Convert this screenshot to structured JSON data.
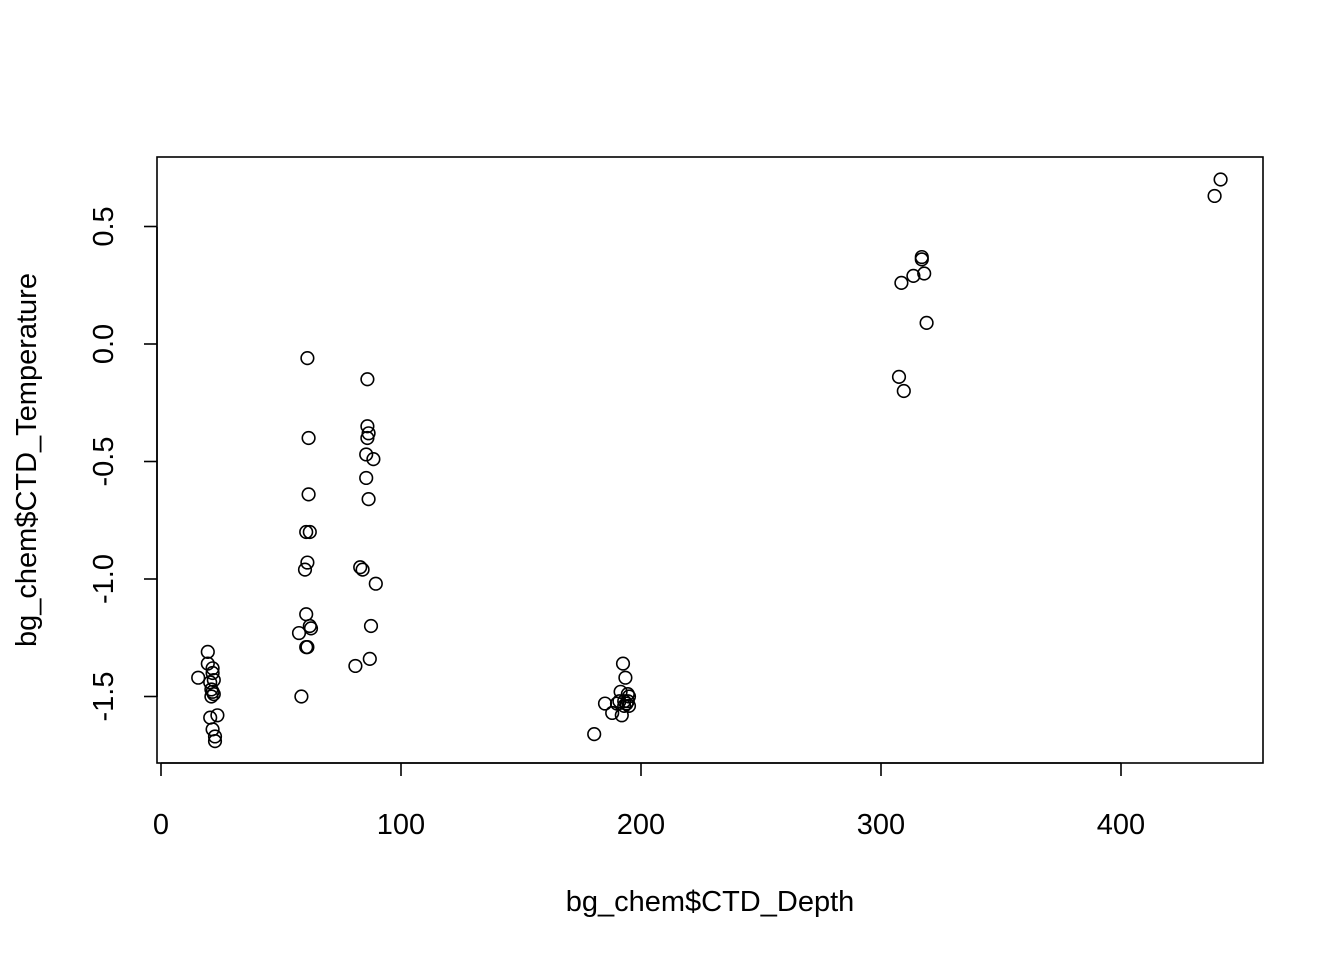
{
  "chart_data": {
    "type": "scatter",
    "title": "",
    "xlabel": "bg_chem$CTD_Depth",
    "ylabel": "bg_chem$CTD_Temperature",
    "xlim": [
      0,
      460
    ],
    "ylim": [
      -1.75,
      0.75
    ],
    "xticks": [
      "0",
      "100",
      "200",
      "300",
      "400"
    ],
    "yticks": [
      "-1.5",
      "-1.0",
      "-0.5",
      "0.0",
      "0.5"
    ],
    "grid": false,
    "legend": "none",
    "marker": "open-circle",
    "points": [
      {
        "x": 15.5,
        "y": -1.42
      },
      {
        "x": 19.5,
        "y": -1.31
      },
      {
        "x": 19.5,
        "y": -1.36
      },
      {
        "x": 20.5,
        "y": -1.44
      },
      {
        "x": 20.5,
        "y": -1.59
      },
      {
        "x": 21.0,
        "y": -1.47
      },
      {
        "x": 21.0,
        "y": -1.5
      },
      {
        "x": 21.5,
        "y": -1.38
      },
      {
        "x": 21.5,
        "y": -1.4
      },
      {
        "x": 21.5,
        "y": -1.48
      },
      {
        "x": 21.5,
        "y": -1.64
      },
      {
        "x": 22.0,
        "y": -1.43
      },
      {
        "x": 22.0,
        "y": -1.49
      },
      {
        "x": 22.5,
        "y": -1.67
      },
      {
        "x": 22.5,
        "y": -1.69
      },
      {
        "x": 23.5,
        "y": -1.58
      },
      {
        "x": 57.5,
        "y": -1.23
      },
      {
        "x": 58.5,
        "y": -1.5
      },
      {
        "x": 60.0,
        "y": -0.96
      },
      {
        "x": 60.5,
        "y": -0.8
      },
      {
        "x": 60.5,
        "y": -1.29
      },
      {
        "x": 60.5,
        "y": -1.15
      },
      {
        "x": 61.0,
        "y": -0.06
      },
      {
        "x": 61.0,
        "y": -0.93
      },
      {
        "x": 61.0,
        "y": -1.29
      },
      {
        "x": 61.5,
        "y": -0.4
      },
      {
        "x": 61.5,
        "y": -0.64
      },
      {
        "x": 62.0,
        "y": -0.8
      },
      {
        "x": 62.0,
        "y": -1.2
      },
      {
        "x": 62.5,
        "y": -1.21
      },
      {
        "x": 81.0,
        "y": -1.37
      },
      {
        "x": 83.0,
        "y": -0.95
      },
      {
        "x": 84.0,
        "y": -0.96
      },
      {
        "x": 85.5,
        "y": -0.47
      },
      {
        "x": 85.5,
        "y": -0.57
      },
      {
        "x": 86.0,
        "y": -0.15
      },
      {
        "x": 86.0,
        "y": -0.35
      },
      {
        "x": 86.0,
        "y": -0.4
      },
      {
        "x": 86.5,
        "y": -0.38
      },
      {
        "x": 86.5,
        "y": -0.66
      },
      {
        "x": 87.0,
        "y": -1.34
      },
      {
        "x": 87.5,
        "y": -1.2
      },
      {
        "x": 88.5,
        "y": -0.49
      },
      {
        "x": 89.5,
        "y": -1.02
      },
      {
        "x": 180.5,
        "y": -1.66
      },
      {
        "x": 185.0,
        "y": -1.53
      },
      {
        "x": 188.0,
        "y": -1.57
      },
      {
        "x": 190.0,
        "y": -1.53
      },
      {
        "x": 191.0,
        "y": -1.52
      },
      {
        "x": 191.5,
        "y": -1.48
      },
      {
        "x": 192.0,
        "y": -1.58
      },
      {
        "x": 192.5,
        "y": -1.36
      },
      {
        "x": 193.0,
        "y": -1.52
      },
      {
        "x": 193.0,
        "y": -1.54
      },
      {
        "x": 193.5,
        "y": -1.42
      },
      {
        "x": 194.0,
        "y": -1.53
      },
      {
        "x": 194.5,
        "y": -1.49
      },
      {
        "x": 194.5,
        "y": -1.52
      },
      {
        "x": 195.0,
        "y": -1.5
      },
      {
        "x": 195.0,
        "y": -1.54
      },
      {
        "x": 307.5,
        "y": -0.14
      },
      {
        "x": 308.5,
        "y": 0.26
      },
      {
        "x": 309.5,
        "y": -0.2
      },
      {
        "x": 313.5,
        "y": 0.29
      },
      {
        "x": 317.0,
        "y": 0.37
      },
      {
        "x": 317.0,
        "y": 0.36
      },
      {
        "x": 318.0,
        "y": 0.3
      },
      {
        "x": 319.0,
        "y": 0.09
      },
      {
        "x": 439.0,
        "y": 0.63
      },
      {
        "x": 441.5,
        "y": 0.7
      }
    ]
  }
}
